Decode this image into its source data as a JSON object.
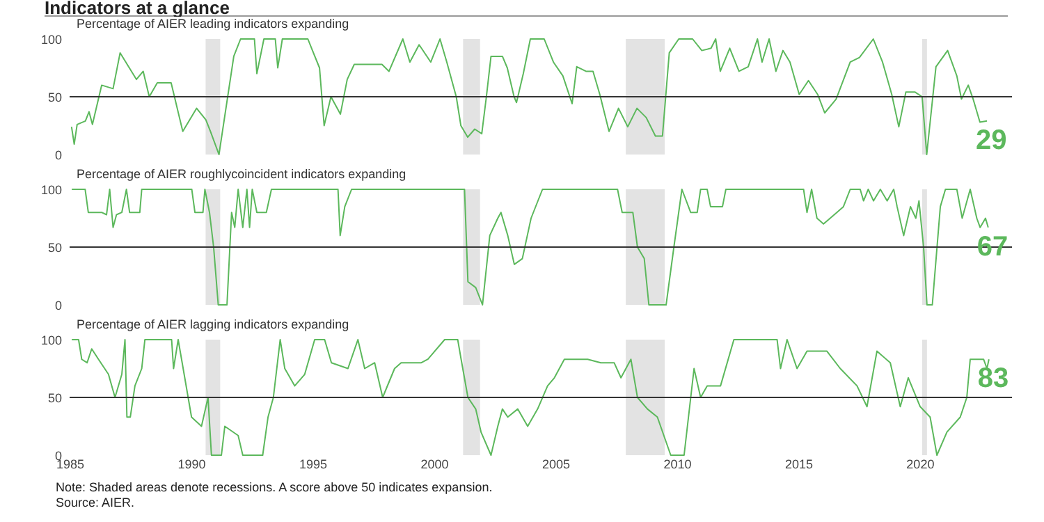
{
  "chart_data": [
    {
      "type": "line",
      "title": "Indicators at a glance",
      "subtitle": "Percentage of AIER leading indicators expanding",
      "x": [
        1985.08,
        1985.19,
        1985.31,
        1985.65,
        1985.8,
        1985.94,
        1986.32,
        1986.79,
        1987.08,
        1987.75,
        1988.03,
        1988.28,
        1988.61,
        1989.18,
        1989.66,
        1990.23,
        1990.61,
        1990.8,
        1991.15,
        1991.76,
        1992.04,
        1992.61,
        1992.71,
        1993.0,
        1993.47,
        1993.57,
        1993.76,
        1994.81,
        1995.0,
        1995.29,
        1995.48,
        1995.76,
        1996.15,
        1996.43,
        1996.72,
        1997.86,
        1998.15,
        1998.72,
        1999.01,
        1999.39,
        1999.87,
        2000.25,
        2000.53,
        2000.92,
        2001.11,
        2001.39,
        2001.68,
        2001.97,
        2002.16,
        2002.35,
        2002.82,
        2003.02,
        2003.3,
        2003.4,
        2003.68,
        2003.97,
        2004.54,
        2004.92,
        2005.31,
        2005.69,
        2005.88,
        2006.26,
        2006.55,
        2006.83,
        2007.21,
        2007.6,
        2007.98,
        2008.36,
        2008.74,
        2009.12,
        2009.41,
        2009.69,
        2010.08,
        2010.65,
        2011.03,
        2011.41,
        2011.6,
        2011.79,
        2012.18,
        2012.56,
        2012.94,
        2013.32,
        2013.51,
        2013.8,
        2014.08,
        2014.37,
        2014.66,
        2015.04,
        2015.42,
        2015.8,
        2016.09,
        2016.56,
        2017.14,
        2017.52,
        2018.09,
        2018.47,
        2018.85,
        2019.14,
        2019.43,
        2019.81,
        2020.1,
        2020.29,
        2020.67,
        2021.15,
        2021.53,
        2021.72,
        2022.0,
        2022.2,
        2022.48,
        2022.77
      ],
      "series": [
        {
          "color": "#5cb85c",
          "values": [
            24,
            9,
            26,
            29,
            37,
            26,
            60,
            57,
            88,
            65,
            72,
            50,
            62,
            62,
            20,
            40,
            30,
            20,
            0,
            85,
            100,
            100,
            70,
            100,
            100,
            75,
            100,
            100,
            90,
            75,
            25,
            50,
            35,
            65,
            78,
            78,
            72,
            100,
            80,
            95,
            80,
            100,
            80,
            50,
            25,
            15,
            22,
            18,
            50,
            85,
            85,
            75,
            50,
            45,
            70,
            100,
            100,
            80,
            68,
            44,
            76,
            72,
            72,
            52,
            20,
            40,
            24,
            40,
            32,
            16,
            16,
            88,
            100,
            100,
            90,
            92,
            100,
            72,
            92,
            72,
            76,
            100,
            80,
            100,
            72,
            90,
            80,
            52,
            64,
            52,
            36,
            48,
            80,
            84,
            100,
            80,
            52,
            24,
            54,
            54,
            50,
            0,
            76,
            90,
            68,
            48,
            60,
            48,
            28,
            29
          ]
        }
      ],
      "xlim": [
        1985,
        2023.8
      ],
      "ylim": [
        0,
        100
      ],
      "xticks": [
        1985,
        1990,
        1995,
        2000,
        2005,
        2010,
        2015,
        2020
      ],
      "yticks": [
        0,
        50,
        100
      ],
      "tick_labels": "y",
      "grid": false,
      "ref_lines": [
        {
          "axis": "y",
          "value": 50,
          "color": "#333333"
        }
      ],
      "bands": [
        {
          "axis": "x",
          "from": 1990.6,
          "to": 1991.2,
          "color": "#e3e3e3"
        },
        {
          "axis": "x",
          "from": 2001.2,
          "to": 2001.9,
          "color": "#e3e3e3"
        },
        {
          "axis": "x",
          "from": 2007.9,
          "to": 2009.5,
          "color": "#e3e3e3"
        },
        {
          "axis": "x",
          "from": 2020.1,
          "to": 2020.3,
          "color": "#e3e3e3"
        }
      ],
      "annotations": [
        {
          "text": "29",
          "x": 2022.77,
          "y": 29
        }
      ]
    },
    {
      "type": "line",
      "subtitle": "Percentage of AIER roughlycoincident indicators expanding",
      "x": [
        1985.09,
        1985.64,
        1985.77,
        1986.32,
        1986.52,
        1986.65,
        1986.79,
        1986.93,
        1987.15,
        1987.34,
        1987.47,
        1987.89,
        1987.97,
        1990.03,
        1990.16,
        1990.49,
        1990.57,
        1990.76,
        1990.93,
        1991.12,
        1991.48,
        1991.67,
        1991.8,
        1991.94,
        1992.13,
        1992.3,
        1992.41,
        1992.52,
        1992.71,
        1993.1,
        1993.31,
        1996.05,
        1996.14,
        1996.33,
        1996.61,
        2001.26,
        2001.4,
        2001.72,
        2002.0,
        2002.3,
        2002.63,
        2002.76,
        2003.04,
        2003.31,
        2003.64,
        2004.0,
        2004.47,
        2007.56,
        2007.75,
        2008.19,
        2008.38,
        2008.66,
        2008.85,
        2009.56,
        2009.88,
        2010.21,
        2010.57,
        2010.84,
        2010.98,
        2011.25,
        2011.39,
        2011.88,
        2012.02,
        2015.22,
        2015.36,
        2015.55,
        2015.77,
        2016.04,
        2016.59,
        2016.86,
        2017.14,
        2017.55,
        2017.69,
        2017.88,
        2018.1,
        2018.38,
        2018.66,
        2018.93,
        2019.07,
        2019.34,
        2019.62,
        2019.84,
        2019.97,
        2020.16,
        2020.3,
        2020.52,
        2020.85,
        2021.06,
        2021.53,
        2021.75,
        2022.08,
        2022.35,
        2022.49,
        2022.71,
        2022.82
      ],
      "series": [
        {
          "color": "#5cb85c",
          "values": [
            100,
            100,
            80,
            80,
            78,
            100,
            67,
            78,
            80,
            100,
            80,
            80,
            100,
            100,
            80,
            80,
            100,
            80,
            50,
            0,
            0,
            80,
            67,
            100,
            67,
            100,
            67,
            100,
            80,
            80,
            100,
            100,
            60,
            85,
            100,
            100,
            20,
            15,
            0,
            60,
            75,
            80,
            60,
            35,
            40,
            75,
            100,
            100,
            80,
            80,
            50,
            40,
            0,
            0,
            50,
            100,
            80,
            80,
            100,
            100,
            85,
            85,
            100,
            100,
            80,
            100,
            75,
            70,
            80,
            85,
            100,
            100,
            90,
            100,
            90,
            100,
            90,
            100,
            85,
            60,
            85,
            75,
            90,
            50,
            0,
            0,
            85,
            100,
            100,
            75,
            100,
            75,
            67,
            75,
            67
          ]
        }
      ],
      "xlim": [
        1985,
        2023.8
      ],
      "ylim": [
        0,
        100
      ],
      "xticks": [
        1985,
        1990,
        1995,
        2000,
        2005,
        2010,
        2015,
        2020
      ],
      "yticks": [
        0,
        50,
        100
      ],
      "tick_labels": "y",
      "grid": false,
      "ref_lines": [
        {
          "axis": "y",
          "value": 50,
          "color": "#333333"
        }
      ],
      "bands": [
        {
          "axis": "x",
          "from": 1990.6,
          "to": 1991.2,
          "color": "#e3e3e3"
        },
        {
          "axis": "x",
          "from": 2001.2,
          "to": 2001.9,
          "color": "#e3e3e3"
        },
        {
          "axis": "x",
          "from": 2007.9,
          "to": 2009.5,
          "color": "#e3e3e3"
        },
        {
          "axis": "x",
          "from": 2020.1,
          "to": 2020.3,
          "color": "#e3e3e3"
        }
      ],
      "annotations": [
        {
          "text": "67",
          "x": 2022.82,
          "y": 67
        }
      ]
    },
    {
      "type": "line",
      "subtitle": "Percentage of AIER lagging indicators expanding",
      "x": [
        1985.09,
        1985.37,
        1985.5,
        1985.72,
        1985.91,
        1986.19,
        1986.6,
        1986.87,
        1987.15,
        1987.28,
        1987.36,
        1987.5,
        1987.69,
        1987.97,
        1988.1,
        1989.2,
        1989.28,
        1989.47,
        1989.61,
        1990.02,
        1990.43,
        1990.7,
        1990.84,
        1991.25,
        1991.39,
        1991.94,
        1992.13,
        1992.63,
        1992.95,
        1993.17,
        1993.39,
        1993.67,
        1993.86,
        1994.27,
        1994.68,
        1995.09,
        1995.5,
        1995.78,
        1996.46,
        1996.87,
        1997.15,
        1997.56,
        1997.89,
        1998.38,
        1998.65,
        1999.48,
        1999.75,
        2000.44,
        2000.98,
        2001.12,
        2001.4,
        2001.72,
        2001.94,
        2002.35,
        2002.63,
        2002.82,
        2003.04,
        2003.45,
        2003.86,
        2004.27,
        2004.68,
        2004.96,
        2005.37,
        2006.33,
        2006.87,
        2007.42,
        2007.7,
        2008.11,
        2008.38,
        2008.79,
        2009.2,
        2009.75,
        2010.3,
        2010.71,
        2010.98,
        2011.25,
        2011.8,
        2012.35,
        2014.13,
        2014.27,
        2014.54,
        2014.95,
        2015.36,
        2016.18,
        2016.73,
        2017.42,
        2017.83,
        2018.24,
        2018.79,
        2019.2,
        2019.53,
        2020.02,
        2020.43,
        2020.71,
        2021.12,
        2021.67,
        2021.94,
        2022.08,
        2022.63,
        2022.77,
        2022.85
      ],
      "series": [
        {
          "color": "#5cb85c",
          "values": [
            100,
            100,
            83,
            80,
            92,
            83,
            70,
            50,
            70,
            100,
            33,
            33,
            60,
            75,
            100,
            100,
            75,
            100,
            83,
            33,
            25,
            50,
            0,
            0,
            25,
            17,
            0,
            0,
            0,
            33,
            50,
            100,
            75,
            60,
            70,
            100,
            100,
            80,
            75,
            100,
            75,
            80,
            50,
            75,
            80,
            80,
            83,
            100,
            100,
            83,
            50,
            40,
            20,
            0,
            25,
            40,
            33,
            40,
            25,
            40,
            60,
            67,
            83,
            83,
            80,
            80,
            67,
            83,
            50,
            40,
            33,
            0,
            0,
            75,
            50,
            60,
            60,
            100,
            100,
            75,
            100,
            75,
            90,
            90,
            75,
            60,
            42,
            90,
            80,
            42,
            67,
            42,
            33,
            0,
            20,
            33,
            50,
            83,
            83,
            75,
            83
          ]
        }
      ],
      "xlim": [
        1985,
        2023.8
      ],
      "ylim": [
        0,
        100
      ],
      "xticks": [
        1985,
        1990,
        1995,
        2000,
        2005,
        2010,
        2015,
        2020
      ],
      "yticks": [
        0,
        50,
        100
      ],
      "grid": false,
      "ref_lines": [
        {
          "axis": "y",
          "value": 50,
          "color": "#333333"
        }
      ],
      "bands": [
        {
          "axis": "x",
          "from": 1990.6,
          "to": 1991.2,
          "color": "#e3e3e3"
        },
        {
          "axis": "x",
          "from": 2001.2,
          "to": 2001.9,
          "color": "#e3e3e3"
        },
        {
          "axis": "x",
          "from": 2007.9,
          "to": 2009.5,
          "color": "#e3e3e3"
        },
        {
          "axis": "x",
          "from": 2020.1,
          "to": 2020.3,
          "color": "#e3e3e3"
        }
      ],
      "annotations": [
        {
          "text": "83",
          "x": 2022.85,
          "y": 83
        },
        "Note: Shaded areas denote recessions. A score above 50 indicates expansion.",
        "Source: AIER."
      ]
    }
  ]
}
